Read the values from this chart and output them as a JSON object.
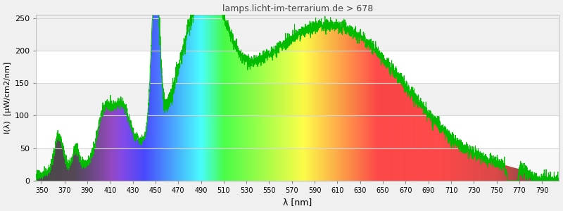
{
  "title": "lamps.licht-im-terrarium.de > 678",
  "xlabel": "λ [nm]",
  "ylabel": "I(λ)  [μW/cm2/nm]",
  "xlim": [
    345,
    805
  ],
  "ylim": [
    0,
    255
  ],
  "yticks": [
    0,
    50,
    100,
    150,
    200,
    250
  ],
  "xticks": [
    350,
    370,
    390,
    410,
    430,
    450,
    470,
    490,
    510,
    530,
    550,
    570,
    590,
    610,
    630,
    650,
    670,
    690,
    710,
    730,
    750,
    770,
    790
  ],
  "background_color": "#f0f0f0",
  "plot_bg_color": "#ffffff",
  "grid_color": "#d8d8d8",
  "line_color": "#00bb00",
  "title_fontsize": 9,
  "axis_fontsize": 8,
  "tick_fontsize": 8
}
